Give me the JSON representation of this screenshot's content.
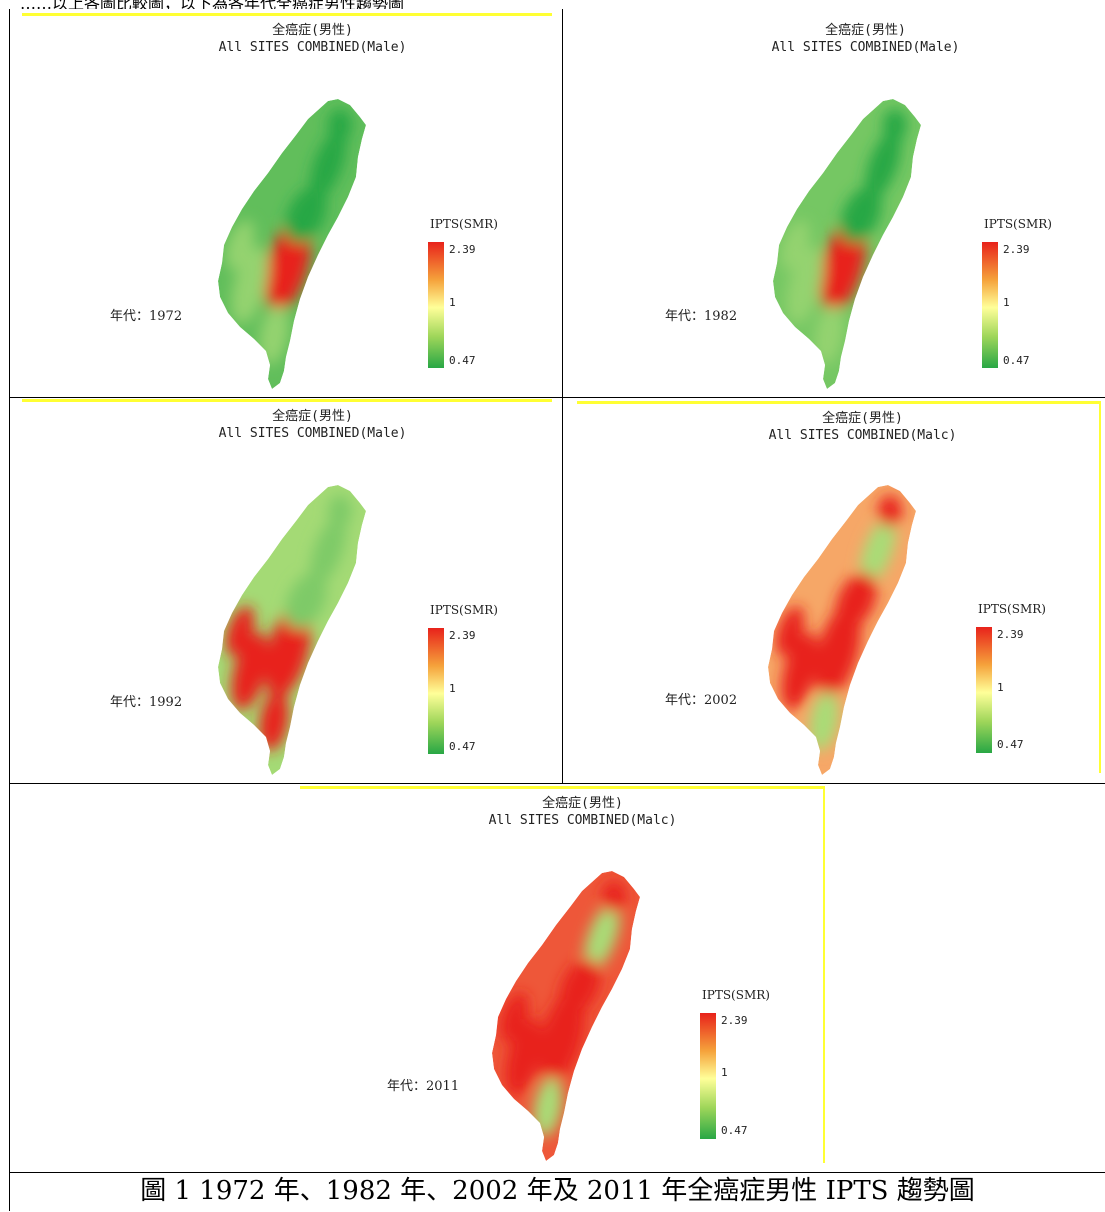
{
  "top_fragment": "……以上各圖比較圖，以下為各年代全癌症男性趨勢圖",
  "maps": [
    {
      "title_zh": "全癌症(男性)",
      "title_en": "All SITES COMBINED(Male)",
      "year": "年代：1972",
      "legend_title": "IPTS(SMR)",
      "legend_max": "2.39",
      "legend_mid": "1",
      "legend_min": "0.47",
      "hot_level": 0.22
    },
    {
      "title_zh": "全癌症(男性)",
      "title_en": "All SITES COMBINED(Male)",
      "year": "年代：1982",
      "legend_title": "IPTS(SMR)",
      "legend_max": "2.39",
      "legend_mid": "1",
      "legend_min": "0.47",
      "hot_level": 0.3
    },
    {
      "title_zh": "全癌症(男性)",
      "title_en": "All SITES COMBINED(Male)",
      "year": "年代：1992",
      "legend_title": "IPTS(SMR)",
      "legend_max": "2.39",
      "legend_mid": "1",
      "legend_min": "0.47",
      "hot_level": 0.48
    },
    {
      "title_zh": "全癌症(男性)",
      "title_en": "All SITES COMBINED(Malc)",
      "year": "年代：2002",
      "legend_title": "IPTS(SMR)",
      "legend_max": "2.39",
      "legend_mid": "1",
      "legend_min": "0.47",
      "hot_level": 0.7
    },
    {
      "title_zh": "全癌症(男性)",
      "title_en": "All SITES COMBINED(Malc)",
      "year": "年代：2011",
      "legend_title": "IPTS(SMR)",
      "legend_max": "2.39",
      "legend_mid": "1",
      "legend_min": "0.47",
      "hot_level": 0.88
    }
  ],
  "caption": "圖 1 1972 年、1982 年、2002 年及 2011 年全癌症男性 IPTS 趨勢圖",
  "colors": {
    "high": "#e8221b",
    "mid": "#ffff99",
    "low": "#28a745",
    "accent": "#ffff33"
  }
}
